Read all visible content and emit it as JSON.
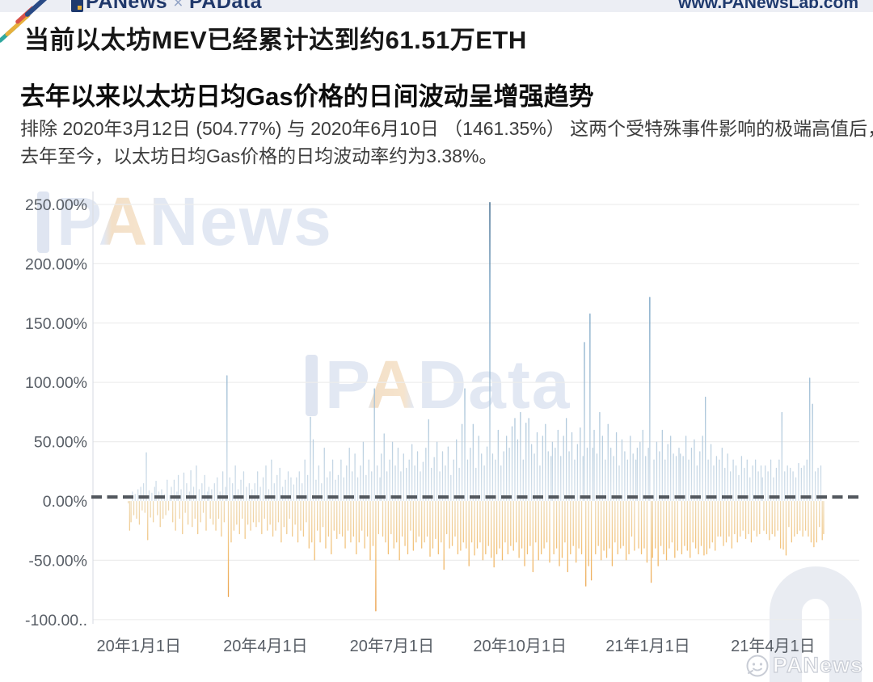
{
  "header": {
    "brand_left": "PANews",
    "brand_sep": "×",
    "brand_right": "PAData",
    "url": "www.PANewsLab.com"
  },
  "title": "当前以太坊MEV已经累计达到约61.51万ETH",
  "chart_section": {
    "subtitle": "去年以来以太坊日均Gas价格的日间波动呈增强趋势",
    "description_line1": "排除 2020年3月12日 (504.77%) 与 2020年6月10日 （1461.35%） 这两个受特殊事件影响的极端高值后，",
    "description_line2": "去年至今，以太坊日均Gas价格的日均波动率约为3.38%。"
  },
  "watermarks": {
    "top_left": "PANews",
    "center": "PAData",
    "bottom_right": "PANews"
  },
  "theme": {
    "brand_navy": "#1f3a6e",
    "topbar_bg": "#eceef4",
    "watermark_gray": "#e3e8f2"
  },
  "chart_data": {
    "type": "bar",
    "title": "去年以来以太坊日均Gas价格的日间波动呈增强趋势",
    "unit": "%",
    "ylim": [
      -100,
      260
    ],
    "grid": true,
    "y_ticks": [
      "250.00%",
      "200.00%",
      "150.00%",
      "100.00%",
      "50.00%",
      "0.00%",
      "-50.00%",
      "-100.00.."
    ],
    "y_tick_values": [
      250,
      200,
      150,
      100,
      50,
      0,
      -50,
      -100
    ],
    "x_ticks": [
      "20年1月1日",
      "20年4月1日",
      "20年7月1日",
      "20年10月1日",
      "21年1月1日",
      "21年4月1日"
    ],
    "x_start_date": "2020-01-01",
    "mean_line_value": 3.38,
    "notable_points": {
      "max_spike_pct": 252,
      "excluded_2020_03_12_pct": 504.77,
      "excluded_2020_06_10_pct": 1461.35,
      "avg_daily_volatility_pct": 3.38
    },
    "colors": {
      "positive_tip": "#2c5a80",
      "positive_mid": "#6d9cc0",
      "positive_base": "#d7e2ec",
      "negative_base": "#efddbb",
      "negative_mid": "#f2c075",
      "negative_tip": "#e9993f",
      "mean_line": "#53585e",
      "gridline": "#ededed",
      "axis_text": "#585e66"
    },
    "values": [
      -2,
      -25,
      -18,
      8,
      -12,
      6,
      -15,
      10,
      -20,
      12,
      -8,
      15,
      -10,
      41,
      -33,
      9,
      -14,
      7,
      -18,
      12,
      17,
      -12,
      8,
      -22,
      10,
      -15,
      6,
      -12,
      18,
      -8,
      5,
      12,
      -18,
      18,
      -25,
      8,
      22,
      -15,
      10,
      -28,
      24,
      -10,
      15,
      -20,
      8,
      26,
      -22,
      12,
      -15,
      30,
      -28,
      10,
      -18,
      15,
      -10,
      22,
      -25,
      8,
      12,
      -15,
      10,
      -20,
      15,
      -25,
      20,
      -15,
      8,
      -30,
      25,
      -18,
      12,
      106,
      -81,
      20,
      -35,
      15,
      -25,
      30,
      -20,
      10,
      -28,
      18,
      -15,
      25,
      -32,
      12,
      -20,
      15,
      -25,
      10,
      -18,
      15,
      -22,
      25,
      -18,
      12,
      -28,
      20,
      -15,
      30,
      -25,
      10,
      -20,
      35,
      -30,
      15,
      -25,
      22,
      -18,
      28,
      -35,
      12,
      -22,
      18,
      -28,
      25,
      -15,
      20,
      -30,
      14,
      -20,
      20,
      -35,
      25,
      -25,
      15,
      -30,
      35,
      -18,
      22,
      -40,
      71,
      -35,
      52,
      -50,
      18,
      -25,
      30,
      -35,
      15,
      -22,
      45,
      -40,
      20,
      -30,
      25,
      -45,
      35,
      -25,
      18,
      -32,
      22,
      -28,
      35,
      -30,
      20,
      -40,
      30,
      -25,
      45,
      -35,
      25,
      -30,
      40,
      -45,
      20,
      -35,
      30,
      -25,
      50,
      -40,
      22,
      -30,
      35,
      -50,
      25,
      -38,
      95,
      -93,
      30,
      -28,
      20,
      40,
      -30,
      57,
      -35,
      25,
      -45,
      35,
      -28,
      50,
      -40,
      30,
      -35,
      45,
      -50,
      25,
      -30,
      40,
      -38,
      28,
      -45,
      35,
      -25,
      48,
      -42,
      30,
      -35,
      42,
      -30,
      25,
      -40,
      33,
      -35,
      45,
      -30,
      69,
      -47,
      28,
      -40,
      37,
      -32,
      50,
      -45,
      25,
      -35,
      42,
      -58,
      30,
      -28,
      46,
      -40,
      22,
      -38,
      35,
      -30,
      52,
      -45,
      28,
      -42,
      65,
      -35,
      95,
      -40,
      35,
      -55,
      45,
      -35,
      65,
      -46,
      28,
      -40,
      55,
      -35,
      40,
      -50,
      30,
      -45,
      46,
      -38,
      252,
      -48,
      40,
      -56,
      35,
      -45,
      60,
      -40,
      30,
      -50,
      42,
      -35,
      55,
      -45,
      45,
      -38,
      63,
      -42,
      70,
      -35,
      52,
      -48,
      75,
      -40,
      35,
      -55,
      66,
      -45,
      70,
      -38,
      48,
      -60,
      40,
      -35,
      58,
      -50,
      30,
      -45,
      55,
      -40,
      65,
      -35,
      42,
      -52,
      38,
      50,
      -45,
      45,
      -40,
      60,
      -55,
      38,
      -48,
      55,
      -35,
      70,
      -60,
      42,
      -45,
      58,
      -38,
      35,
      -52,
      48,
      -40,
      62,
      -45,
      38,
      134,
      -72,
      45,
      -55,
      158,
      -67,
      45,
      60,
      -45,
      40,
      -38,
      75,
      -50,
      55,
      -42,
      35,
      -48,
      65,
      -40,
      45,
      -55,
      38,
      -35,
      58,
      -45,
      30,
      -40,
      52,
      -38,
      42,
      -50,
      35,
      -45,
      55,
      -30,
      40,
      -42,
      35,
      45,
      -40,
      50,
      -45,
      60,
      -40,
      38,
      -52,
      45,
      172,
      -69,
      -48,
      35,
      -40,
      50,
      -55,
      42,
      -38,
      60,
      -45,
      35,
      -50,
      48,
      -40,
      55,
      -35,
      40,
      -48,
      38,
      -42,
      45,
      40,
      -45,
      38,
      -38,
      55,
      -42,
      35,
      -48,
      45,
      -35,
      52,
      -40,
      30,
      -45,
      42,
      -38,
      55,
      -46,
      88,
      -45,
      35,
      -40,
      48,
      -35,
      30,
      -42,
      38,
      -30,
      35,
      -30,
      45,
      -38,
      28,
      -35,
      40,
      -30,
      25,
      -40,
      35,
      -28,
      30,
      -35,
      22,
      -30,
      38,
      -25,
      28,
      -32,
      35,
      -28,
      20,
      -35,
      30,
      -25,
      35,
      -30,
      25,
      -28,
      30,
      20,
      -25,
      30,
      -28,
      25,
      -33,
      35,
      -28,
      20,
      -30,
      28,
      -25,
      35,
      -40,
      75,
      -41,
      25,
      -46,
      30,
      -22,
      28,
      -35,
      25,
      -30,
      20,
      -28,
      32,
      -25,
      28,
      -30,
      30,
      -25,
      35,
      -30,
      104,
      -35,
      82,
      -39,
      25,
      -35,
      28,
      -22,
      30,
      -33,
      -28
    ]
  }
}
